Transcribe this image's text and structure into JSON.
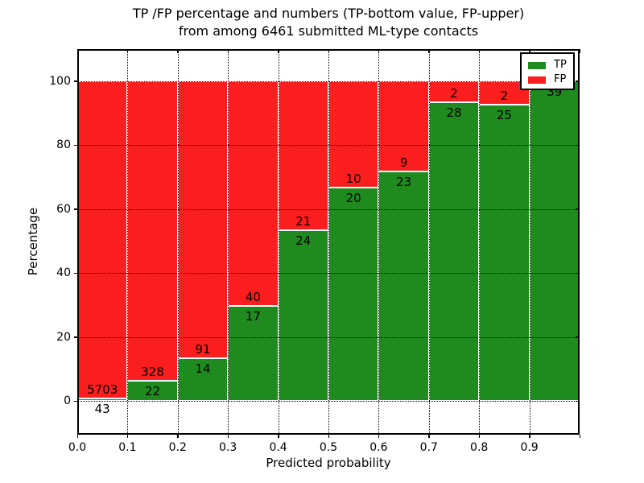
{
  "figure": {
    "title_line1": "TP /FP percentage and numbers (TP-bottom value, FP-upper)",
    "title_line2": "from among 6461 submitted ML-type contacts",
    "background": "#ffffff"
  },
  "chart_data": {
    "type": "bar",
    "stacked": true,
    "title": "TP /FP percentage and numbers (TP-bottom value, FP-upper)\nfrom among 6461 submitted ML-type contacts",
    "xlabel": "Predicted probability",
    "ylabel": "Percentage",
    "total_contacts": 6461,
    "note": "Each bar spans a 0.1-wide predicted-probability bin; TP (green) and FP (red) counts are normalized to 100% per bin. TP count label sits at the bottom of the boundary, FP count label above it.",
    "bin_starts": [
      0.0,
      0.1,
      0.2,
      0.3,
      0.4,
      0.5,
      0.6,
      0.7,
      0.8,
      0.9
    ],
    "bin_width": 0.1,
    "series": [
      {
        "name": "TP",
        "color": "#1f8b1f",
        "counts": [
          43,
          22,
          14,
          17,
          24,
          20,
          23,
          28,
          25,
          39
        ]
      },
      {
        "name": "FP",
        "color": "#fa1e1e",
        "counts": [
          5703,
          328,
          91,
          40,
          21,
          10,
          9,
          2,
          2,
          0
        ]
      }
    ],
    "tp_percent_of_bin": [
      0.75,
      6.29,
      13.33,
      29.82,
      53.33,
      66.67,
      71.88,
      93.33,
      92.59,
      100.0
    ],
    "xticks": [
      "0.0",
      "0.1",
      "0.2",
      "0.3",
      "0.4",
      "0.5",
      "0.6",
      "0.7",
      "0.8",
      "0.9"
    ],
    "yticks": [
      0,
      20,
      40,
      60,
      80,
      100
    ],
    "xlim": [
      0.0,
      1.0
    ],
    "ylim": [
      -10.5,
      110
    ],
    "grid": true,
    "grid_style": "dotted, drawn on top of bars",
    "bar_edge_color": "#ffffff",
    "legend": {
      "position": "upper right",
      "entries": [
        {
          "label": "TP",
          "color": "#1f8b1f"
        },
        {
          "label": "FP",
          "color": "#fa1e1e"
        }
      ]
    }
  }
}
